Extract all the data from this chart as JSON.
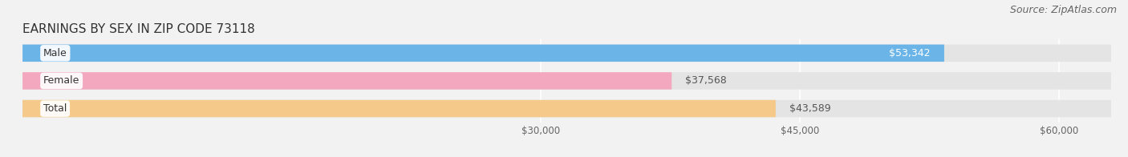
{
  "title": "EARNINGS BY SEX IN ZIP CODE 73118",
  "source": "Source: ZipAtlas.com",
  "categories": [
    "Male",
    "Female",
    "Total"
  ],
  "values": [
    53342,
    37568,
    43589
  ],
  "bar_colors": [
    "#6ab4e8",
    "#f4a8c0",
    "#f5c98a"
  ],
  "value_labels": [
    "$53,342",
    "$37,568",
    "$43,589"
  ],
  "value_inside": [
    true,
    false,
    false
  ],
  "xticks": [
    30000,
    45000,
    60000
  ],
  "xtick_labels": [
    "$30,000",
    "$45,000",
    "$60,000"
  ],
  "xmin": 0,
  "xmax": 63000,
  "bg_color": "#f2f2f2",
  "bar_bg_color": "#e4e4e4",
  "title_fontsize": 11,
  "source_fontsize": 9,
  "bar_label_fontsize": 9,
  "value_fontsize": 9
}
